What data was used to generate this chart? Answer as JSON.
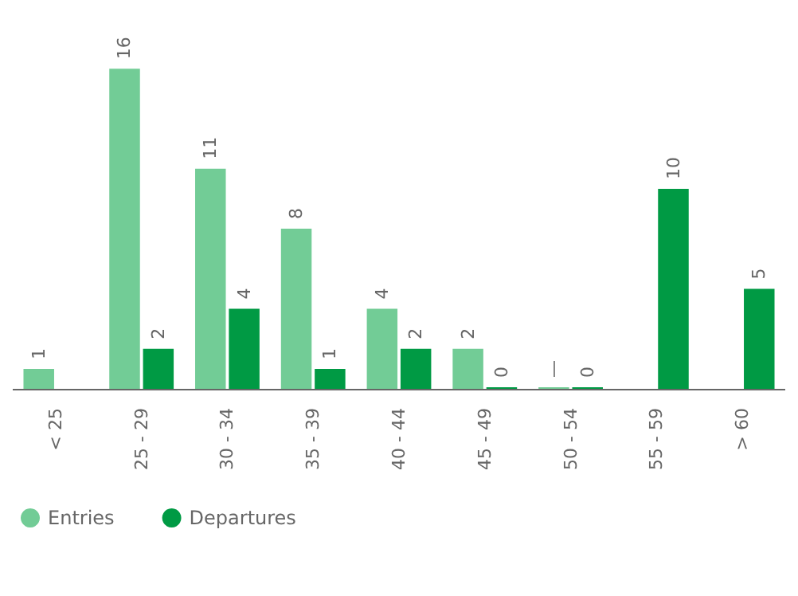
{
  "chart_data": {
    "type": "bar",
    "categories": [
      "< 25",
      "25 - 29",
      "30 - 34",
      "35 - 39",
      "40 - 44",
      "45 - 49",
      "50 - 54",
      "55 - 59",
      "> 60"
    ],
    "series": [
      {
        "name": "Entries",
        "color": "#72cc96",
        "values": [
          1,
          16,
          11,
          8,
          4,
          2,
          0,
          null,
          null
        ],
        "value_labels": [
          "1",
          "16",
          "11",
          "8",
          "4",
          "2",
          "—",
          null,
          null
        ]
      },
      {
        "name": "Departures",
        "color": "#009a44",
        "values": [
          null,
          2,
          4,
          1,
          2,
          0,
          0,
          10,
          5
        ],
        "value_labels": [
          null,
          "2",
          "4",
          "1",
          "2",
          "0",
          "0",
          "10",
          "5"
        ]
      }
    ],
    "legend": "bottom left"
  }
}
